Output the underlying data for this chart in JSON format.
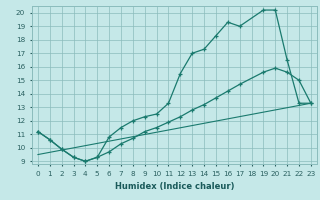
{
  "xlabel": "Humidex (Indice chaleur)",
  "bg_color": "#c5e8e8",
  "grid_color": "#8bbcbc",
  "line_color": "#1a7a6e",
  "xlim": [
    -0.5,
    23.5
  ],
  "ylim": [
    8.8,
    20.5
  ],
  "xticks": [
    0,
    1,
    2,
    3,
    4,
    5,
    6,
    7,
    8,
    9,
    10,
    11,
    12,
    13,
    14,
    15,
    16,
    17,
    18,
    19,
    20,
    21,
    22,
    23
  ],
  "yticks": [
    9,
    10,
    11,
    12,
    13,
    14,
    15,
    16,
    17,
    18,
    19,
    20
  ],
  "line1_x": [
    0,
    1,
    2,
    3,
    4,
    5,
    6,
    7,
    8,
    9,
    10,
    11,
    12,
    13,
    14,
    15,
    16,
    17,
    19,
    20,
    21,
    22,
    23
  ],
  "line1_y": [
    11.2,
    10.6,
    9.9,
    9.3,
    9.0,
    9.3,
    10.8,
    11.5,
    12.0,
    12.3,
    12.5,
    13.3,
    15.5,
    17.0,
    17.3,
    18.3,
    19.3,
    19.0,
    20.2,
    20.2,
    16.5,
    13.3,
    13.3
  ],
  "line2_x": [
    0,
    1,
    2,
    3,
    4,
    5,
    6,
    7,
    8,
    9,
    10,
    11,
    12,
    13,
    14,
    15,
    16,
    17,
    19,
    20,
    21,
    22,
    23
  ],
  "line2_y": [
    11.2,
    10.6,
    9.9,
    9.3,
    9.0,
    9.3,
    9.7,
    10.3,
    10.7,
    11.2,
    11.5,
    11.9,
    12.3,
    12.8,
    13.2,
    13.7,
    14.2,
    14.7,
    15.6,
    15.9,
    15.6,
    15.0,
    13.3
  ],
  "line3_x": [
    0,
    23
  ],
  "line3_y": [
    9.5,
    13.3
  ],
  "xlabel_fontsize": 6.0,
  "xlabel_color": "#1a5a5a",
  "tick_labelsize": 5.2,
  "tick_color": "#2a6060"
}
